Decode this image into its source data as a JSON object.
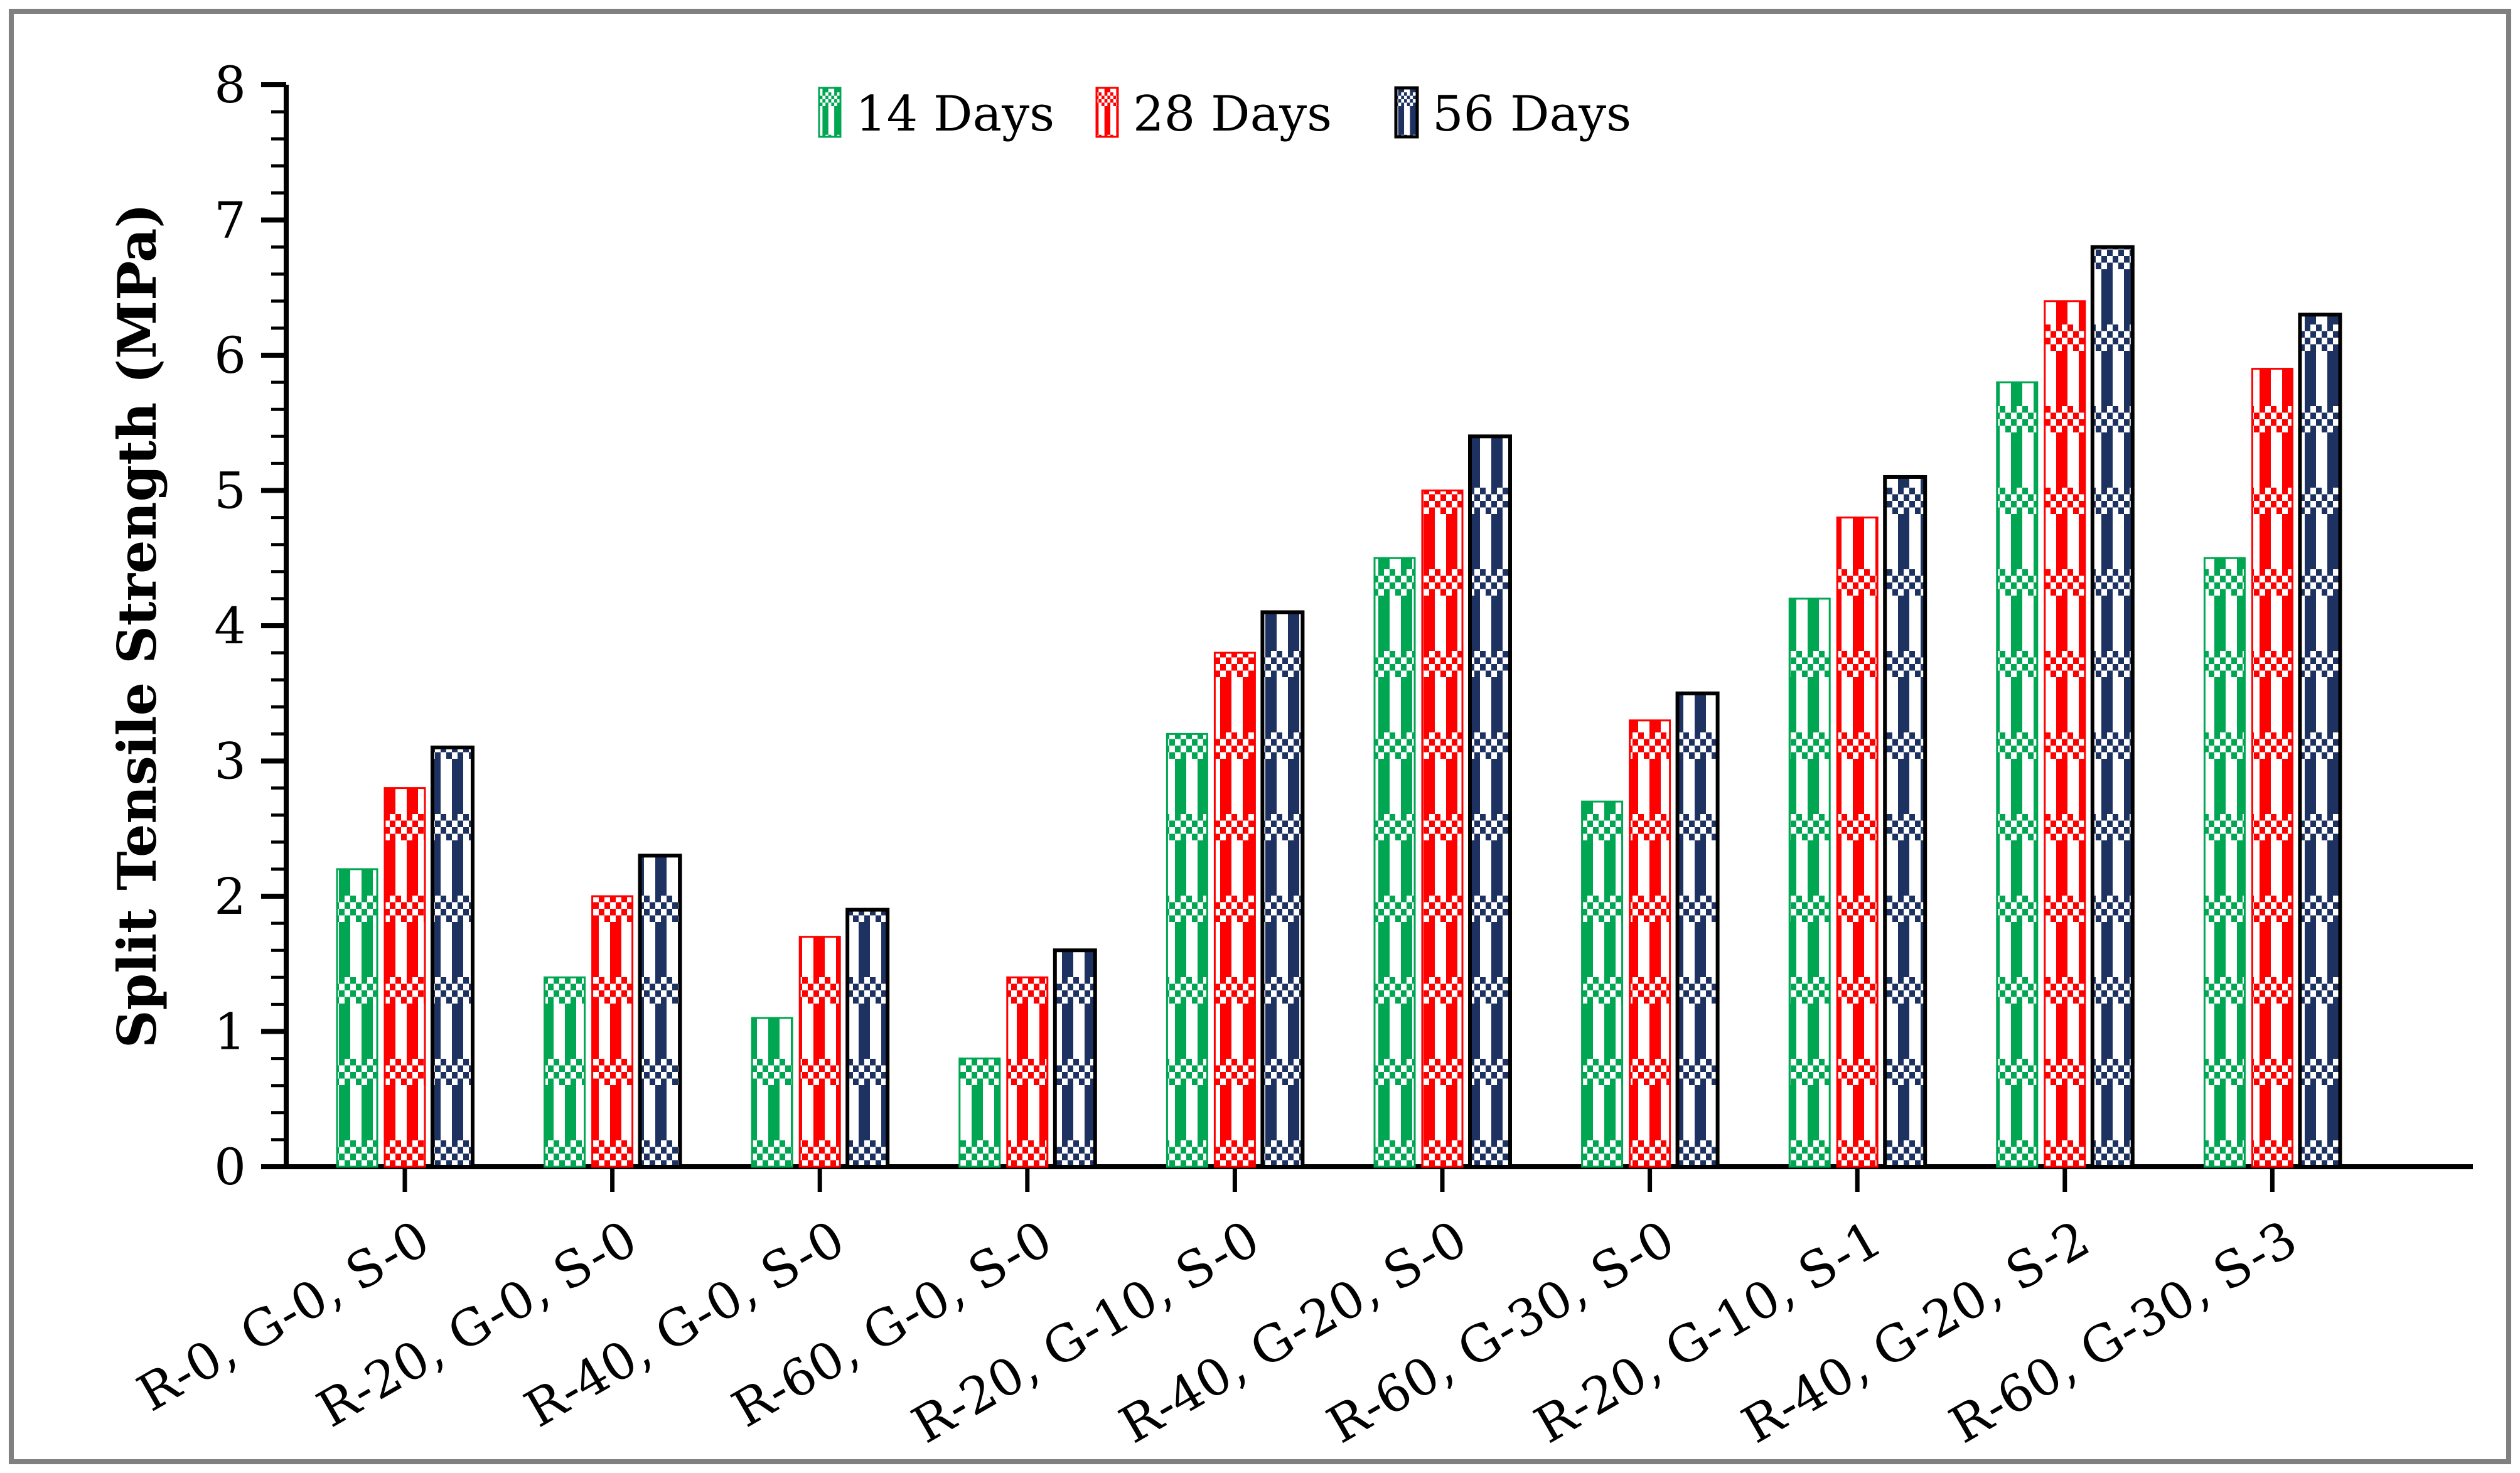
{
  "figure": {
    "background": "#ffffff",
    "border_color": "#808080"
  },
  "chart_data": {
    "type": "bar",
    "title": "",
    "xlabel": "",
    "ylabel": "Split Tensile Strength (MPa)",
    "ylim": [
      0,
      8
    ],
    "y_major_step": 1,
    "y_minor_step": 0.2,
    "grid": false,
    "legend_position": "top-center",
    "y_tick_labels": [
      "0",
      "1",
      "2",
      "3",
      "4",
      "5",
      "6",
      "7",
      "8"
    ],
    "categories": [
      "R-0, G-0, S-0",
      "R-20, G-0, S-0",
      "R-40, G-0, S-0",
      "R-60, G-0, S-0",
      "R-20, G-10, S-0",
      "R-40, G-20, S-0",
      "R-60, G-30, S-0",
      "R-20, G-10, S-1",
      "R-40, G-20, S-2",
      "R-60, G-30, S-3"
    ],
    "series": [
      {
        "name": "14 Days",
        "color": "#00a651",
        "outline": "#00a651",
        "pattern": "checker-plaid",
        "values": [
          2.2,
          1.4,
          1.1,
          0.8,
          3.2,
          4.5,
          2.7,
          4.2,
          5.8,
          4.5
        ]
      },
      {
        "name": "28 Days",
        "color": "#fe0000",
        "outline": "#fe0000",
        "pattern": "checker-plaid",
        "values": [
          2.8,
          2.0,
          1.7,
          1.4,
          3.8,
          5.0,
          3.3,
          4.8,
          6.4,
          5.9
        ]
      },
      {
        "name": "56 Days",
        "color": "#1d3261",
        "outline": "#000000",
        "pattern": "checker-plaid",
        "values": [
          3.1,
          2.3,
          1.9,
          1.6,
          4.1,
          5.4,
          3.5,
          5.1,
          6.8,
          6.3
        ]
      }
    ]
  }
}
